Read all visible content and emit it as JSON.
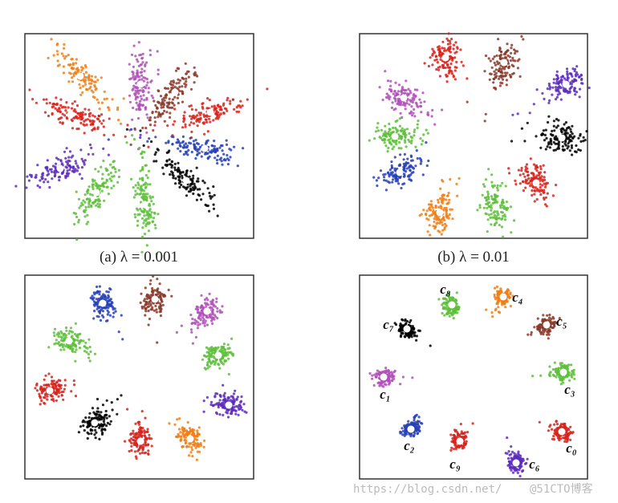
{
  "captions": [
    "(a) λ = 0.001",
    "(b) λ = 0.01"
  ],
  "cluster_labels": [
    "c₈",
    "c₄",
    "c₇",
    "c₅",
    "c₁",
    "c₃",
    "c₂",
    "c₉",
    "c₆",
    "c₀"
  ],
  "watermark": [
    "https://blog.csdn.net/",
    "@51CTO博客"
  ]
}
